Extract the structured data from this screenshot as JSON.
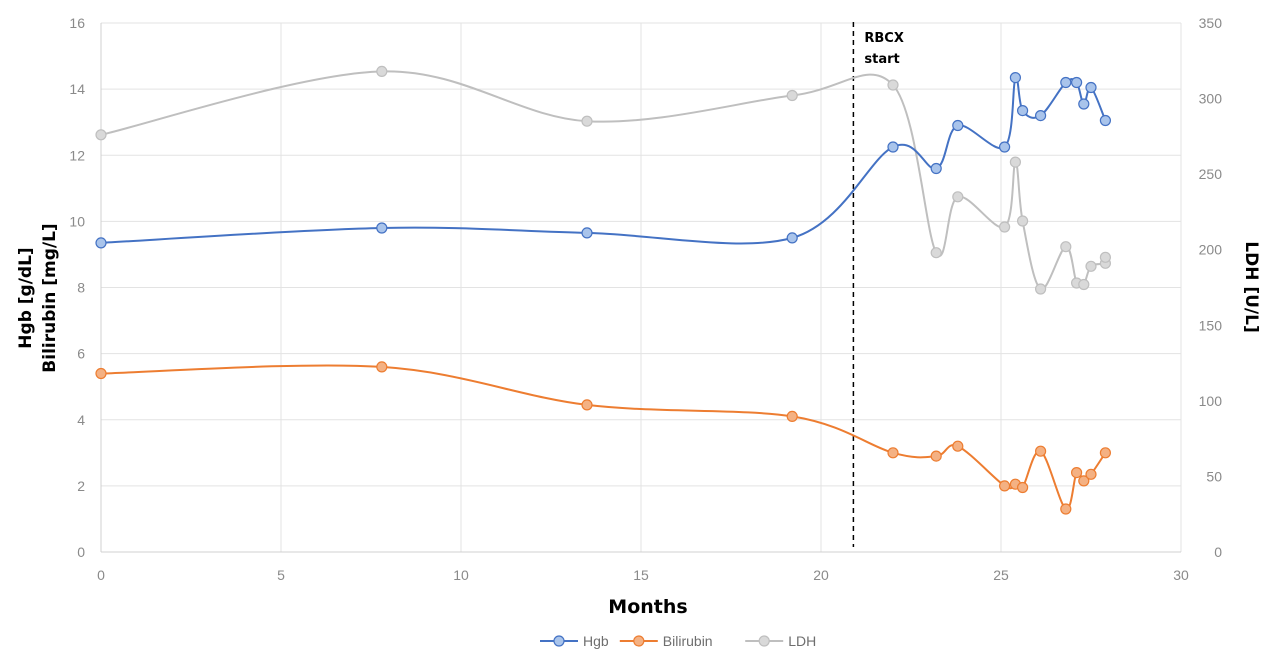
{
  "chart_data": {
    "type": "line",
    "xlabel": "Months",
    "ylabel_left": [
      "Hgb [g/dL]",
      "Bilirubin [mg/L]"
    ],
    "ylabel_right": "LDH [U/L]",
    "xlim": [
      0,
      30
    ],
    "x_ticks": [
      0,
      5,
      10,
      15,
      20,
      25,
      30
    ],
    "ylim_left": [
      0,
      16
    ],
    "y_ticks_left": [
      0,
      2,
      4,
      6,
      8,
      10,
      12,
      14,
      16
    ],
    "ylim_right": [
      0,
      350
    ],
    "y_ticks_right": [
      0,
      50,
      100,
      150,
      200,
      250,
      300,
      350
    ],
    "grid": true,
    "legend_position": "bottom-center",
    "annotation": {
      "x": 20.9,
      "lines": [
        "RBCX",
        "start"
      ],
      "style": "dashed"
    },
    "series": [
      {
        "name": "Hgb",
        "axis": "left",
        "line_color": "#4472c4",
        "marker_fill": "#a9c4eb",
        "x": [
          0,
          7.8,
          13.5,
          19.2,
          22.0,
          23.2,
          23.8,
          25.1,
          25.4,
          25.6,
          26.1,
          26.8,
          27.1,
          27.3,
          27.5,
          27.9
        ],
        "y": [
          9.35,
          9.8,
          9.65,
          9.5,
          12.25,
          11.6,
          12.9,
          12.25,
          14.35,
          13.35,
          13.2,
          14.2,
          14.2,
          13.55,
          14.05,
          13.05
        ]
      },
      {
        "name": "Bilirubin",
        "axis": "left",
        "line_color": "#ed7d31",
        "marker_fill": "#f4b183",
        "x": [
          0,
          7.8,
          13.5,
          19.2,
          22.0,
          23.2,
          23.8,
          25.1,
          25.4,
          25.6,
          26.1,
          26.8,
          27.1,
          27.3,
          27.5,
          27.9
        ],
        "y": [
          5.4,
          5.6,
          4.45,
          4.1,
          3.0,
          2.9,
          3.2,
          2.0,
          2.05,
          1.95,
          3.05,
          1.3,
          2.4,
          2.15,
          2.35,
          3.0
        ]
      },
      {
        "name": "LDH",
        "axis": "right",
        "line_color": "#bfbfbf",
        "marker_fill": "#d9d9d9",
        "x": [
          0,
          7.8,
          13.5,
          19.2,
          22.0,
          23.2,
          23.8,
          25.1,
          25.4,
          25.6,
          26.1,
          26.8,
          27.1,
          27.3,
          27.5,
          27.9,
          27.9
        ],
        "y": [
          276,
          318,
          285,
          302,
          309,
          198,
          235,
          215,
          258,
          219,
          174,
          202,
          178,
          177,
          189,
          191,
          195
        ]
      }
    ]
  }
}
